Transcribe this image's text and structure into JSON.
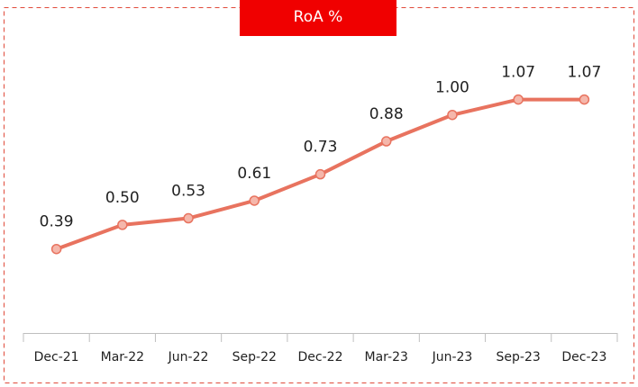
{
  "chart_data": {
    "type": "line",
    "title": "RoA %",
    "categories": [
      "Dec-21",
      "Mar-22",
      "Jun-22",
      "Sep-22",
      "Dec-22",
      "Mar-23",
      "Jun-23",
      "Sep-23",
      "Dec-23"
    ],
    "values": [
      0.39,
      0.5,
      0.53,
      0.61,
      0.73,
      0.88,
      1.0,
      1.07,
      1.07
    ],
    "value_labels": [
      "0.39",
      "0.50",
      "0.53",
      "0.61",
      "0.73",
      "0.88",
      "1.00",
      "1.07",
      "1.07"
    ],
    "color": "#e8735f",
    "marker_fill": "#f5b7ab",
    "ylim": [
      0,
      1.4
    ]
  }
}
